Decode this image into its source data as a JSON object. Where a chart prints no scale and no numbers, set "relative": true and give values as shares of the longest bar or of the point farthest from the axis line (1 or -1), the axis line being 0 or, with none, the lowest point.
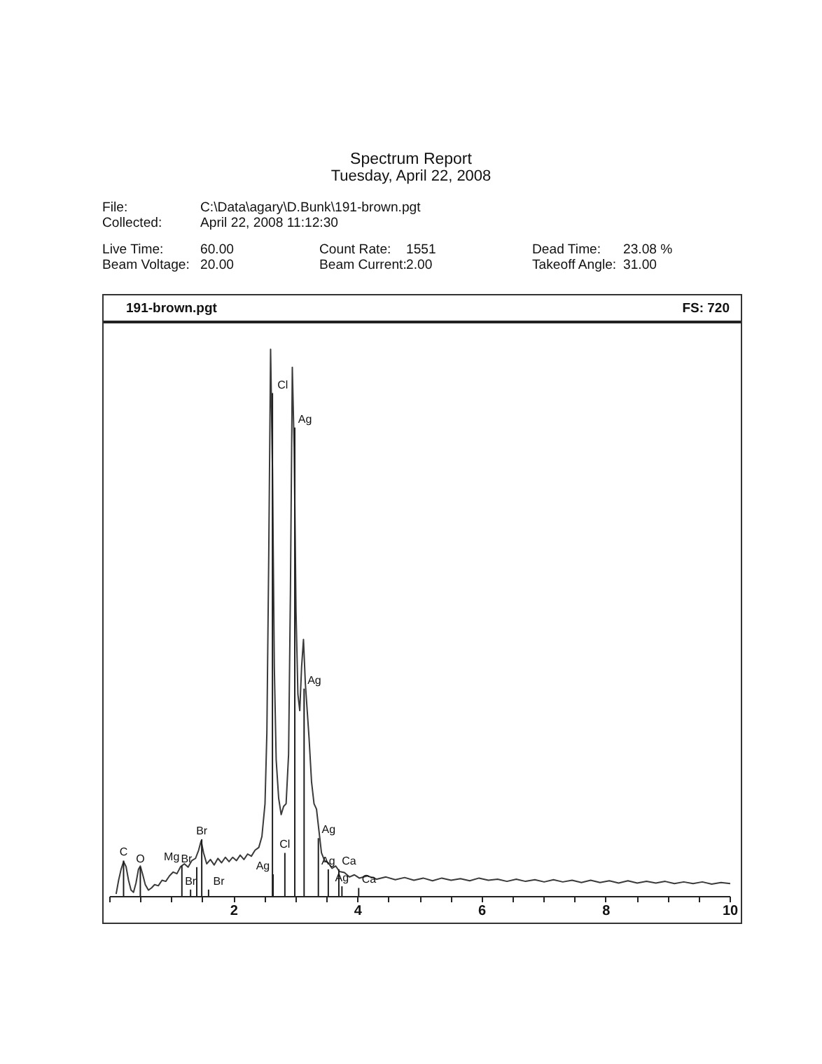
{
  "chart_data": {
    "type": "line",
    "title": "Spectrum Report",
    "subtitle": "Tuesday, April 22, 2008",
    "x": [
      0.1,
      0.14,
      0.18,
      0.22,
      0.26,
      0.3,
      0.34,
      0.38,
      0.42,
      0.46,
      0.49,
      0.53,
      0.57,
      0.62,
      0.67,
      0.72,
      0.78,
      0.84,
      0.9,
      0.96,
      1.02,
      1.08,
      1.14,
      1.2,
      1.26,
      1.32,
      1.38,
      1.43,
      1.47,
      1.51,
      1.56,
      1.62,
      1.68,
      1.74,
      1.8,
      1.86,
      1.92,
      1.98,
      2.04,
      2.1,
      2.16,
      2.22,
      2.28,
      2.34,
      2.4,
      2.45,
      2.5,
      2.53,
      2.56,
      2.59,
      2.62,
      2.65,
      2.68,
      2.72,
      2.76,
      2.8,
      2.84,
      2.88,
      2.91,
      2.94,
      2.97,
      3.0,
      3.03,
      3.06,
      3.09,
      3.12,
      3.15,
      3.18,
      3.21,
      3.25,
      3.29,
      3.33,
      3.37,
      3.41,
      3.46,
      3.52,
      3.58,
      3.64,
      3.7,
      3.78,
      3.86,
      3.94,
      4.02,
      4.15,
      4.3,
      4.45,
      4.6,
      4.75,
      4.9,
      5.05,
      5.2,
      5.35,
      5.5,
      5.65,
      5.8,
      5.95,
      6.1,
      6.25,
      6.4,
      6.55,
      6.7,
      6.85,
      7.0,
      7.15,
      7.3,
      7.45,
      7.6,
      7.75,
      7.9,
      8.05,
      8.2,
      8.35,
      8.5,
      8.65,
      8.8,
      8.95,
      9.1,
      9.25,
      9.4,
      9.55,
      9.7,
      9.85,
      10.0
    ],
    "series": [
      {
        "color": "#3a3a3a",
        "values": [
          0.005,
          0.03,
          0.05,
          0.064,
          0.055,
          0.03,
          0.012,
          0.008,
          0.025,
          0.05,
          0.056,
          0.04,
          0.022,
          0.012,
          0.016,
          0.022,
          0.02,
          0.03,
          0.028,
          0.038,
          0.045,
          0.042,
          0.055,
          0.06,
          0.054,
          0.066,
          0.07,
          0.085,
          0.102,
          0.08,
          0.06,
          0.068,
          0.058,
          0.07,
          0.062,
          0.072,
          0.064,
          0.072,
          0.066,
          0.076,
          0.068,
          0.078,
          0.074,
          0.085,
          0.09,
          0.11,
          0.17,
          0.3,
          0.62,
          1.0,
          0.78,
          0.42,
          0.25,
          0.18,
          0.15,
          0.165,
          0.17,
          0.26,
          0.56,
          0.967,
          0.82,
          0.52,
          0.37,
          0.34,
          0.42,
          0.47,
          0.39,
          0.34,
          0.29,
          0.21,
          0.17,
          0.16,
          0.12,
          0.08,
          0.066,
          0.062,
          0.052,
          0.056,
          0.046,
          0.044,
          0.036,
          0.04,
          0.034,
          0.038,
          0.032,
          0.036,
          0.031,
          0.035,
          0.03,
          0.034,
          0.029,
          0.034,
          0.03,
          0.033,
          0.029,
          0.034,
          0.03,
          0.032,
          0.028,
          0.032,
          0.028,
          0.031,
          0.027,
          0.031,
          0.027,
          0.03,
          0.026,
          0.03,
          0.026,
          0.029,
          0.025,
          0.029,
          0.025,
          0.028,
          0.025,
          0.028,
          0.024,
          0.027,
          0.024,
          0.027,
          0.023,
          0.026,
          0.024
        ]
      },
      {
        "type": "bar",
        "color": "#1a1a1a",
        "x": [
          0.22,
          0.49,
          1.16,
          1.3,
          1.4,
          1.48,
          1.59,
          2.62,
          2.63,
          2.82,
          2.98,
          3.13,
          3.36,
          3.52,
          3.69,
          3.74,
          4.01
        ],
        "values": [
          0.066,
          0.054,
          0.057,
          0.013,
          0.054,
          0.105,
          0.013,
          0.92,
          0.041,
          0.08,
          0.857,
          0.38,
          0.107,
          0.05,
          0.05,
          0.019,
          0.016
        ]
      }
    ],
    "relative": true,
    "xlim": [
      0,
      10
    ],
    "xticks": [
      {
        "value": 0,
        "label": null
      },
      {
        "value": 0.5,
        "label": null
      },
      {
        "value": 1,
        "label": null
      },
      {
        "value": 1.5,
        "label": null
      },
      2,
      {
        "value": 2.5,
        "label": null
      },
      {
        "value": 3,
        "label": null
      },
      {
        "value": 3.5,
        "label": null
      },
      4,
      {
        "value": 4.5,
        "label": null
      },
      {
        "value": 5,
        "label": null
      },
      {
        "value": 5.5,
        "label": null
      },
      6,
      {
        "value": 6.5,
        "label": null
      },
      {
        "value": 7,
        "label": null
      },
      {
        "value": 7.5,
        "label": null
      },
      8,
      {
        "value": 8.5,
        "label": null
      },
      {
        "value": 9,
        "label": null
      },
      {
        "value": 9.5,
        "label": null
      },
      10
    ],
    "annotations": [
      "File:",
      "C:\\Data\\agary\\D.Bunk\\191-brown.pgt",
      "Collected:",
      "April 22, 2008 11:12:30",
      "Live Time:",
      "60.00",
      "Count Rate:",
      "1551",
      "Dead Time:",
      "23.08 %",
      "Beam Voltage:",
      "20.00",
      "Beam Current:",
      "2.00",
      "Takeoff Angle:",
      "31.00",
      "191-brown.pgt",
      "FS: 720",
      {
        "text": "C",
        "x": 0.22,
        "y": 0.066
      },
      {
        "text": "O",
        "x": 0.49,
        "y": 0.054
      },
      {
        "text": "Mg",
        "x": 1.16,
        "y": 0.057
      },
      {
        "text": "Br",
        "x": 1.3,
        "y": 0.013
      },
      {
        "text": "Br",
        "x": 1.4,
        "y": 0.054
      },
      {
        "text": "Br",
        "x": 1.48,
        "y": 0.105
      },
      {
        "text": "Br",
        "x": 1.59,
        "y": 0.013
      },
      {
        "text": "Cl",
        "x": 2.62,
        "y": 0.92
      },
      {
        "text": "Ag",
        "x": 2.63,
        "y": 0.041
      },
      {
        "text": "Cl",
        "x": 2.82,
        "y": 0.08
      },
      {
        "text": "Ag",
        "x": 2.98,
        "y": 0.857
      },
      {
        "text": "Ag",
        "x": 3.13,
        "y": 0.38
      },
      {
        "text": "Ag",
        "x": 3.36,
        "y": 0.107
      },
      {
        "text": "Ag",
        "x": 3.52,
        "y": 0.05
      },
      {
        "text": "Ca",
        "x": 3.69,
        "y": 0.05
      },
      {
        "text": "Ag",
        "x": 3.74,
        "y": 0.019
      },
      {
        "text": "Ca",
        "x": 4.01,
        "y": 0.016
      }
    ]
  }
}
